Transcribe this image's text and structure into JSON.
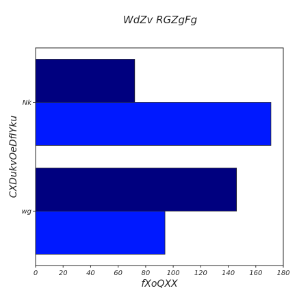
{
  "chart_data": {
    "type": "bar",
    "orientation": "horizontal",
    "title": "WdZv RGZgFg",
    "xlabel": "fXoQXX",
    "ylabel": "CXDukvOeDfIYku",
    "categories": [
      "Nk",
      "wg"
    ],
    "series": [
      {
        "values": [
          72,
          146
        ],
        "color": "#00007f"
      },
      {
        "values": [
          171,
          94
        ],
        "color": "#0019ff"
      }
    ],
    "xlim": [
      0,
      180
    ],
    "xticks": [
      0,
      20,
      40,
      60,
      80,
      100,
      120,
      140,
      160,
      180
    ],
    "grid": false,
    "legend": false
  }
}
